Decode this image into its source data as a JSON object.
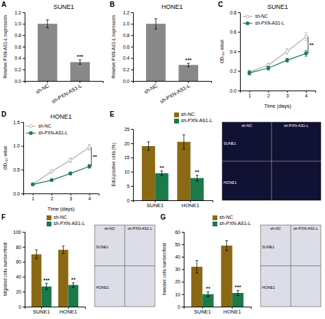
{
  "chart_data": [
    {
      "type": "bar",
      "label": "A",
      "title": "SUNE1",
      "categories": [
        "sh-NC",
        "sh-PXN-AS1-L"
      ],
      "values": [
        1.0,
        0.33
      ],
      "errors": [
        0.07,
        0.04
      ],
      "sig_labels": [
        null,
        "***"
      ],
      "color": "#888888",
      "ylabel": "Relative PXN-AS1-L expression",
      "ylim": [
        0,
        1.2
      ],
      "yticks": [
        {
          "value": 0,
          "label": "0.0"
        },
        0.2,
        0.4,
        0.6,
        0.8,
        {
          "value": 1,
          "label": "1.0"
        },
        1.2
      ]
    },
    {
      "type": "bar",
      "label": "B",
      "title": "HONE1",
      "categories": [
        "sh-NC",
        "sh-PXN-AS1-L"
      ],
      "values": [
        1.0,
        0.28
      ],
      "errors": [
        0.09,
        0.03
      ],
      "sig_labels": [
        null,
        "***"
      ],
      "color": "#888888",
      "ylabel": "Relative PXN-AS1-L expression",
      "ylim": [
        0,
        1.2
      ],
      "yticks": [
        {
          "value": 0,
          "label": "0.0"
        },
        0.2,
        0.4,
        0.6,
        0.8,
        {
          "value": 1,
          "label": "1.0"
        },
        1.2
      ]
    },
    {
      "type": "line",
      "label": "C",
      "title": "SUNE1",
      "xlabel": "Time (days)",
      "ylabel": "OD₅₀₀ value",
      "xlim": [
        0.5,
        4.5
      ],
      "ylim": [
        0,
        0.8
      ],
      "xticks": [
        1,
        2,
        3,
        4
      ],
      "yticks": [
        {
          "value": 0,
          "label": "0.0"
        },
        0.2,
        0.4,
        0.6,
        0.8
      ],
      "legend": "top-left",
      "series": [
        {
          "name": "sh-NC",
          "x": [
            1,
            2,
            3,
            4
          ],
          "values": [
            0.19,
            0.26,
            0.4,
            0.55
          ],
          "errors": [
            0.02,
            0.02,
            0.03,
            0.04
          ],
          "color": "#aaaaaa",
          "marker": "circle-open",
          "line_style": "solid"
        },
        {
          "name": "sh-PXN-AS1-L",
          "x": [
            1,
            2,
            3,
            4
          ],
          "values": [
            0.18,
            0.23,
            0.31,
            0.38
          ],
          "errors": [
            0.02,
            0.02,
            0.02,
            0.03
          ],
          "color": "#1a7a4a",
          "marker": "square",
          "line_style": "solid"
        }
      ],
      "annotations": [
        {
          "text": "**",
          "x": 4,
          "y1": 0.55,
          "y2": 0.38
        }
      ]
    },
    {
      "type": "line",
      "label": "D",
      "title": "HONE1",
      "xlabel": "Time (days)",
      "ylabel": "OD₅₀₀ value",
      "xlim": [
        0.5,
        4.5
      ],
      "ylim": [
        0,
        1.5
      ],
      "xticks": [
        1,
        2,
        3,
        4
      ],
      "yticks": [
        {
          "value": 0,
          "label": "0.0"
        },
        0.5,
        {
          "value": 1,
          "label": "1.0"
        },
        1.5
      ],
      "legend": "top-left",
      "series": [
        {
          "name": "sh-NC",
          "x": [
            1,
            2,
            3,
            4
          ],
          "values": [
            0.19,
            0.46,
            0.7,
            0.97
          ],
          "errors": [
            0.02,
            0.03,
            0.05,
            0.06
          ],
          "color": "#aaaaaa",
          "marker": "circle-open",
          "line_style": "solid"
        },
        {
          "name": "sh-PXN-AS1-L",
          "x": [
            1,
            2,
            3,
            4
          ],
          "values": [
            0.19,
            0.28,
            0.42,
            0.57
          ],
          "errors": [
            0.02,
            0.02,
            0.03,
            0.04
          ],
          "color": "#1a7a4a",
          "marker": "square",
          "line_style": "solid"
        }
      ],
      "annotations": [
        {
          "text": "**",
          "x": 4,
          "y1": 0.97,
          "y2": 0.57
        }
      ]
    },
    {
      "type": "bar",
      "label": "E",
      "categories": [
        "SUNE1",
        "HONE1"
      ],
      "ylabel": "EdU-positive cells (%)",
      "ylim": [
        0,
        25
      ],
      "yticks": [
        0,
        5,
        10,
        15,
        20,
        25
      ],
      "legend": "top-right",
      "series": [
        {
          "name": "sh-NC",
          "values": [
            19.0,
            20.5
          ],
          "errors": [
            1.5,
            2.5
          ],
          "color": "#8B6914"
        },
        {
          "name": "sh-PXN-AS1-L",
          "values": [
            9.5,
            7.8
          ],
          "errors": [
            0.8,
            1.0
          ],
          "color": "#1a7a4a",
          "sig_labels": [
            "**",
            "**"
          ]
        }
      ]
    },
    {
      "type": "image",
      "color": "#111133",
      "columns": [
        "sh-NC",
        "sh-PXN-AS1-L"
      ],
      "rows": [
        "SUNE1",
        "HONE1"
      ]
    },
    {
      "type": "bar",
      "label": "F",
      "categories": [
        "SUNE1",
        "HONE1"
      ],
      "ylabel": "Migrated cells number/field",
      "ylim": [
        0,
        100
      ],
      "yticks": [
        0,
        20,
        40,
        60,
        80,
        100
      ],
      "legend": "top-right",
      "series": [
        {
          "name": "sh-NC",
          "values": [
            70,
            76
          ],
          "errors": [
            6,
            5
          ],
          "color": "#8B6914"
        },
        {
          "name": "sh-PXN-AS1-L",
          "values": [
            27,
            29
          ],
          "errors": [
            4,
            3
          ],
          "color": "#1a7a4a",
          "sig_labels": [
            "***",
            "**"
          ]
        }
      ]
    },
    {
      "type": "image",
      "color": "#dddde8",
      "columns": [
        "sh-NC",
        "sh-PXN-AS1-L"
      ],
      "rows": [
        "SUNE1",
        "HONE1"
      ]
    },
    {
      "type": "bar",
      "label": "G",
      "categories": [
        "SUNE1",
        "HONE1"
      ],
      "ylabel": "Invasive cells number/field",
      "ylim": [
        0,
        60
      ],
      "yticks": [
        0,
        10,
        20,
        30,
        40,
        50,
        60
      ],
      "legend": "top-right",
      "series": [
        {
          "name": "sh-NC",
          "values": [
            32,
            49
          ],
          "errors": [
            5,
            4
          ],
          "color": "#8B6914"
        },
        {
          "name": "sh-PXN-AS1-L",
          "values": [
            10,
            11
          ],
          "errors": [
            2,
            2
          ],
          "color": "#1a7a4a",
          "sig_labels": [
            "**",
            "***"
          ]
        }
      ]
    },
    {
      "type": "image",
      "color": "#dddde8",
      "columns": [
        "sh-NC",
        "sh-PXN-AS1-L"
      ],
      "rows": [
        "SUNE1",
        "HONE1"
      ]
    }
  ]
}
